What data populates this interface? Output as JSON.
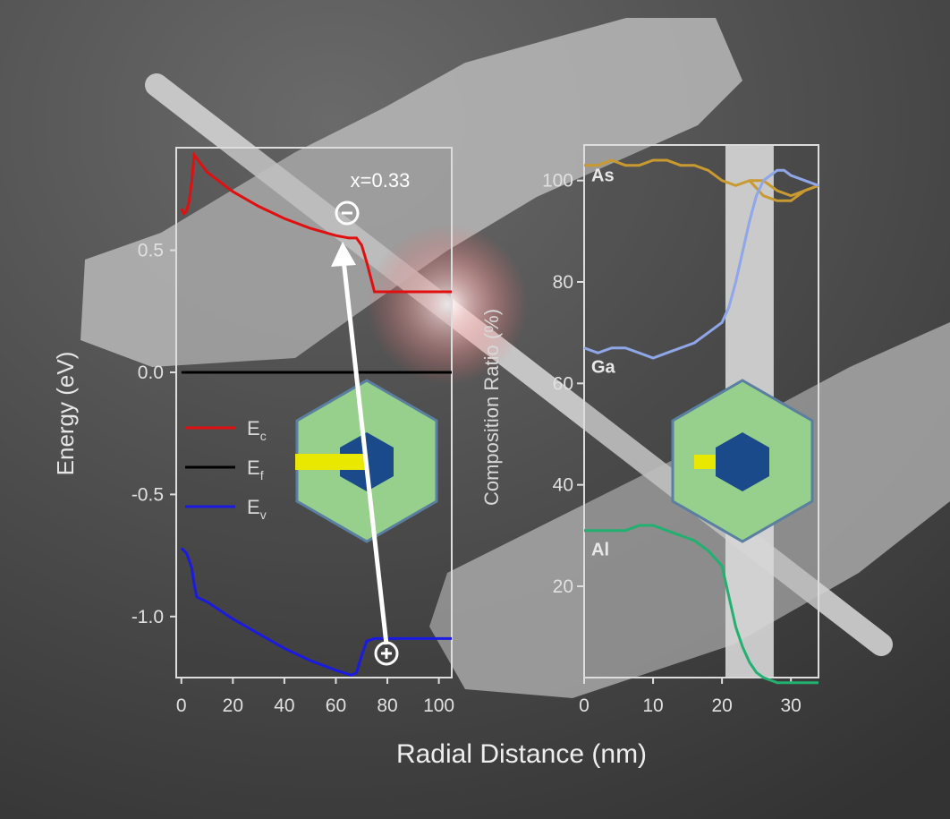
{
  "x_axis_label": "Radial Distance (nm)",
  "colors": {
    "ec": "#e01010",
    "ef": "#000000",
    "ev": "#1a1ae0",
    "as": "#c89a30",
    "ga": "#8fa6e8",
    "al": "#22b070",
    "shell": "#96d08c",
    "core": "#1a4a8a",
    "highlight": "#e8e800",
    "band": "#d8d8d8"
  },
  "chart_data": [
    {
      "type": "line",
      "ylabel": "Energy (eV)",
      "xlim": [
        -2,
        105
      ],
      "ylim": [
        -1.25,
        0.92
      ],
      "xticks": [
        0,
        20,
        40,
        60,
        80,
        100
      ],
      "yticks": [
        {
          "v": 0.5,
          "label": "0.5"
        },
        {
          "v": 0.0,
          "label": "0.0"
        },
        {
          "v": -0.5,
          "label": "-0.5"
        },
        {
          "v": -1.0,
          "label": "-1.0"
        }
      ],
      "series": [
        {
          "name": "E",
          "sub": "c",
          "color_key": "ec",
          "x": [
            0,
            1,
            2,
            3,
            4,
            5,
            10,
            20,
            30,
            40,
            50,
            60,
            65,
            68,
            70,
            72,
            75,
            80,
            90,
            100,
            105
          ],
          "y": [
            0.67,
            0.65,
            0.66,
            0.7,
            0.78,
            0.89,
            0.82,
            0.74,
            0.68,
            0.63,
            0.59,
            0.56,
            0.55,
            0.55,
            0.52,
            0.45,
            0.33,
            0.33,
            0.33,
            0.33,
            0.33
          ]
        },
        {
          "name": "E",
          "sub": "f",
          "color_key": "ef",
          "x": [
            0,
            105
          ],
          "y": [
            0,
            0
          ]
        },
        {
          "name": "E",
          "sub": "v",
          "color_key": "ev",
          "x": [
            0,
            2,
            4,
            5,
            6,
            10,
            20,
            30,
            40,
            50,
            60,
            66,
            68,
            70,
            72,
            75,
            80,
            90,
            100,
            105
          ],
          "y": [
            -0.72,
            -0.74,
            -0.8,
            -0.87,
            -0.92,
            -0.94,
            -1.01,
            -1.07,
            -1.13,
            -1.18,
            -1.22,
            -1.24,
            -1.23,
            -1.16,
            -1.1,
            -1.09,
            -1.09,
            -1.09,
            -1.09,
            -1.09
          ]
        }
      ],
      "annotations": {
        "x_label": "x=0.33",
        "electron": "⊖",
        "hole": "⊕"
      }
    },
    {
      "type": "line",
      "ylabel": "Composition Ratio (%)",
      "xlim": [
        0,
        34
      ],
      "ylim": [
        2,
        107
      ],
      "xticks": [
        0,
        10,
        20,
        30
      ],
      "yticks": [
        20,
        40,
        60,
        80,
        100
      ],
      "shaded_x": [
        20.5,
        27.5
      ],
      "series": [
        {
          "name": "As",
          "color_key": "as",
          "x": [
            0,
            2,
            4,
            6,
            8,
            10,
            12,
            14,
            16,
            18,
            20,
            22,
            24,
            26,
            28,
            30,
            32,
            34
          ],
          "y": [
            103,
            103,
            104,
            103,
            103,
            104,
            104,
            103,
            103,
            102,
            100,
            99,
            100,
            100,
            98,
            97,
            98,
            99
          ]
        },
        {
          "name": "As",
          "color_key": "as",
          "x": [
            24,
            26,
            28,
            30,
            32,
            34
          ],
          "y": [
            100,
            97,
            96,
            96,
            98,
            99
          ]
        },
        {
          "name": "Ga",
          "color_key": "ga",
          "x": [
            0,
            2,
            4,
            6,
            8,
            10,
            12,
            14,
            16,
            18,
            20,
            21,
            22,
            23,
            24,
            25,
            26,
            27,
            28,
            29,
            30,
            32,
            34
          ],
          "y": [
            67,
            66,
            67,
            67,
            66,
            65,
            66,
            67,
            68,
            70,
            72,
            75,
            80,
            86,
            92,
            97,
            100,
            101,
            102,
            102,
            101,
            100,
            99
          ]
        },
        {
          "name": "Al",
          "color_key": "al",
          "x": [
            0,
            2,
            4,
            6,
            8,
            10,
            12,
            14,
            16,
            18,
            20,
            21,
            22,
            23,
            24,
            25,
            26,
            27,
            28,
            30,
            32,
            34
          ],
          "y": [
            31,
            31,
            31,
            31,
            32,
            32,
            31,
            30,
            29,
            27,
            24,
            18,
            12,
            8,
            5,
            3,
            2,
            1.5,
            1,
            1,
            1,
            1
          ]
        }
      ]
    }
  ]
}
